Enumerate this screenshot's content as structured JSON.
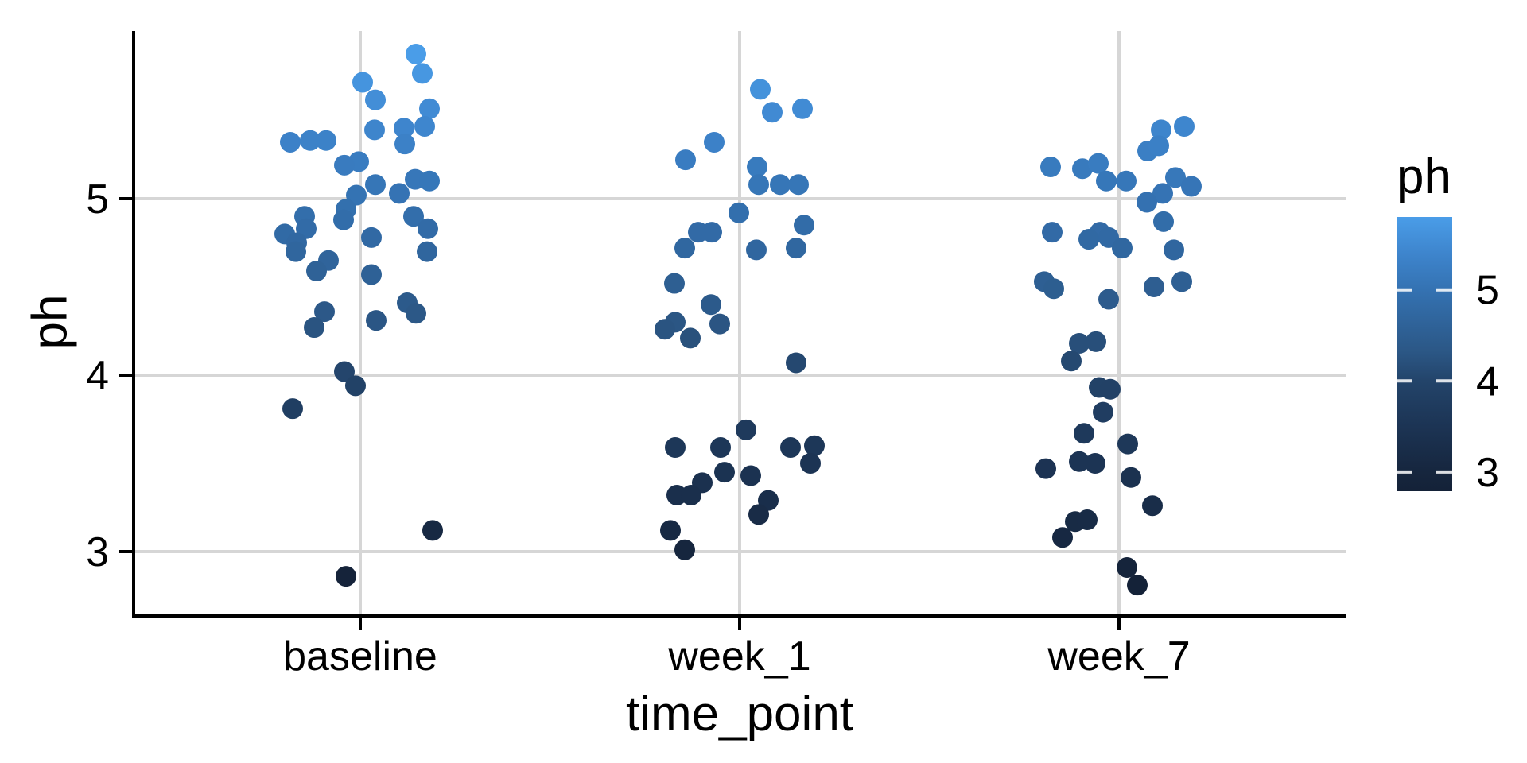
{
  "figure": {
    "background": "#ffffff",
    "x_axis": {
      "title": "time_point",
      "tick_labels": [
        "baseline",
        "week_1",
        "week_7"
      ]
    },
    "y_axis": {
      "title": "ph",
      "tick_labels": [
        "5",
        "4",
        "3"
      ],
      "tick_values": [
        5,
        4,
        3
      ]
    },
    "legend": {
      "title": "ph",
      "tick_labels": [
        "5",
        "4",
        "3"
      ],
      "tick_values": [
        5,
        4,
        3
      ],
      "top_value": 5.8,
      "bottom_value": 2.79
    }
  },
  "chart_data": {
    "type": "scatter",
    "title": "",
    "xlabel": "time_point",
    "ylabel": "ph",
    "categories": [
      "baseline",
      "week_1",
      "week_7"
    ],
    "y_ticks": [
      3,
      4,
      5
    ],
    "ylim": [
      2.64,
      5.96
    ],
    "grid": true,
    "legend_position": "right",
    "point_radius_px": 13,
    "color_scale": {
      "name": "ph",
      "stops": [
        [
          2.8,
          "#142238"
        ],
        [
          3.0,
          "#16263e"
        ],
        [
          3.5,
          "#1c3454"
        ],
        [
          4.0,
          "#23446a"
        ],
        [
          4.3,
          "#2b5684"
        ],
        [
          5.0,
          "#3472b2"
        ],
        [
          5.4,
          "#3e85cd"
        ],
        [
          5.82,
          "#4a9de8"
        ]
      ],
      "legend_range": [
        2.79,
        5.8
      ]
    },
    "series": [
      {
        "name": "baseline",
        "points": [
          [
            70,
            5.82
          ],
          [
            78,
            5.71
          ],
          [
            3,
            5.66
          ],
          [
            19,
            5.56
          ],
          [
            87,
            5.51
          ],
          [
            81,
            5.41
          ],
          [
            55,
            5.4
          ],
          [
            18,
            5.39
          ],
          [
            -88,
            5.32
          ],
          [
            -63,
            5.33
          ],
          [
            -43,
            5.33
          ],
          [
            56,
            5.31
          ],
          [
            -2,
            5.21
          ],
          [
            -20,
            5.19
          ],
          [
            69,
            5.11
          ],
          [
            87,
            5.1
          ],
          [
            19,
            5.08
          ],
          [
            49,
            5.03
          ],
          [
            -5,
            5.02
          ],
          [
            -18,
            4.94
          ],
          [
            67,
            4.9
          ],
          [
            -70,
            4.9
          ],
          [
            -21,
            4.88
          ],
          [
            -68,
            4.83
          ],
          [
            85,
            4.83
          ],
          [
            -95,
            4.8
          ],
          [
            14,
            4.78
          ],
          [
            -80,
            4.75
          ],
          [
            -81,
            4.7
          ],
          [
            84,
            4.7
          ],
          [
            -40,
            4.65
          ],
          [
            -55,
            4.59
          ],
          [
            14,
            4.57
          ],
          [
            59,
            4.41
          ],
          [
            -45,
            4.36
          ],
          [
            70,
            4.35
          ],
          [
            20,
            4.31
          ],
          [
            -58,
            4.27
          ],
          [
            -20,
            4.02
          ],
          [
            -6,
            3.94
          ],
          [
            -85,
            3.81
          ],
          [
            91,
            3.12
          ],
          [
            -18,
            2.86
          ]
        ]
      },
      {
        "name": "week_1",
        "points": [
          [
            26,
            5.62
          ],
          [
            79,
            5.51
          ],
          [
            41,
            5.49
          ],
          [
            -32,
            5.32
          ],
          [
            -68,
            5.22
          ],
          [
            22,
            5.18
          ],
          [
            24,
            5.08
          ],
          [
            51,
            5.08
          ],
          [
            74,
            5.08
          ],
          [
            -1,
            4.92
          ],
          [
            81,
            4.85
          ],
          [
            -52,
            4.81
          ],
          [
            -35,
            4.81
          ],
          [
            -69,
            4.72
          ],
          [
            21,
            4.71
          ],
          [
            71,
            4.72
          ],
          [
            -82,
            4.52
          ],
          [
            -36,
            4.4
          ],
          [
            -81,
            4.3
          ],
          [
            -94,
            4.26
          ],
          [
            -25,
            4.29
          ],
          [
            -62,
            4.21
          ],
          [
            71,
            4.07
          ],
          [
            8,
            3.69
          ],
          [
            -81,
            3.59
          ],
          [
            -24,
            3.59
          ],
          [
            64,
            3.59
          ],
          [
            94,
            3.6
          ],
          [
            89,
            3.5
          ],
          [
            -19,
            3.45
          ],
          [
            14,
            3.43
          ],
          [
            -47,
            3.39
          ],
          [
            -79,
            3.32
          ],
          [
            -61,
            3.32
          ],
          [
            36,
            3.29
          ],
          [
            24,
            3.21
          ],
          [
            -87,
            3.12
          ],
          [
            -69,
            3.01
          ]
        ]
      },
      {
        "name": "week_7",
        "points": [
          [
            53,
            5.39
          ],
          [
            82,
            5.41
          ],
          [
            36,
            5.27
          ],
          [
            50,
            5.3
          ],
          [
            -86,
            5.18
          ],
          [
            -46,
            5.17
          ],
          [
            -26,
            5.2
          ],
          [
            -16,
            5.1
          ],
          [
            9,
            5.1
          ],
          [
            71,
            5.12
          ],
          [
            91,
            5.07
          ],
          [
            55,
            5.03
          ],
          [
            35,
            4.98
          ],
          [
            56,
            4.87
          ],
          [
            -84,
            4.81
          ],
          [
            -24,
            4.81
          ],
          [
            -38,
            4.77
          ],
          [
            -13,
            4.78
          ],
          [
            4,
            4.72
          ],
          [
            69,
            4.71
          ],
          [
            79,
            4.53
          ],
          [
            44,
            4.5
          ],
          [
            -94,
            4.53
          ],
          [
            -82,
            4.49
          ],
          [
            -13,
            4.43
          ],
          [
            -50,
            4.18
          ],
          [
            -29,
            4.19
          ],
          [
            -60,
            4.08
          ],
          [
            -25,
            3.93
          ],
          [
            -11,
            3.92
          ],
          [
            -20,
            3.79
          ],
          [
            -44,
            3.67
          ],
          [
            11,
            3.61
          ],
          [
            -92,
            3.47
          ],
          [
            -50,
            3.51
          ],
          [
            -30,
            3.5
          ],
          [
            15,
            3.42
          ],
          [
            42,
            3.26
          ],
          [
            -55,
            3.17
          ],
          [
            -40,
            3.18
          ],
          [
            -71,
            3.08
          ],
          [
            10,
            2.91
          ],
          [
            23,
            2.81
          ]
        ]
      }
    ],
    "note": "points are [x_jitter_offset_px, ph]; point color is mapped from ph via color_scale"
  }
}
